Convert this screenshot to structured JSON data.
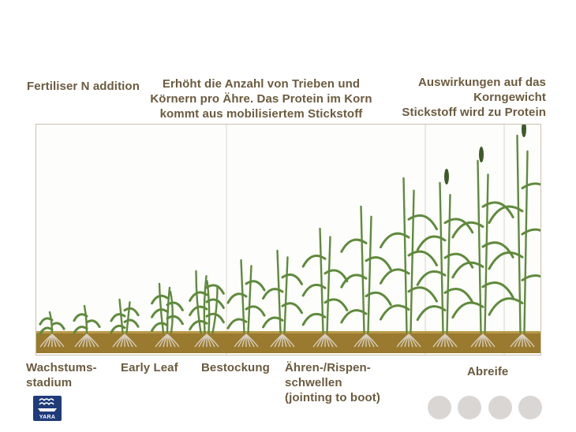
{
  "header": {
    "fertiliser_label": "Fertiliser N addition",
    "tiller_effect": [
      "Erhöht die Anzahl von Trieben und",
      "Körnern pro Ähre. Das Protein im Korn",
      "kommt aus mobilisiertem  Stickstoff"
    ],
    "grain_effect": [
      "Auswirkungen auf das",
      "Korngewicht",
      "Stickstoff wird zu Protein"
    ]
  },
  "stages": {
    "growth_stage": [
      "Wachstums-",
      "stadium"
    ],
    "early_leaf": "Early Leaf",
    "tillering": "Bestockung",
    "jointing": [
      "Ähren-/Rispen-",
      "schwellen",
      "(jointing to boot)"
    ],
    "ripening": "Abreife"
  },
  "logo": {
    "text": "YARA",
    "color": "#1f3b7a"
  },
  "nav_dots": 4,
  "colors": {
    "soil": "#9a7a2e",
    "plant": "#5f8a3c",
    "head": "#3f5a2a",
    "root": "#d8cfc0",
    "divider": "#d9d5cc"
  }
}
